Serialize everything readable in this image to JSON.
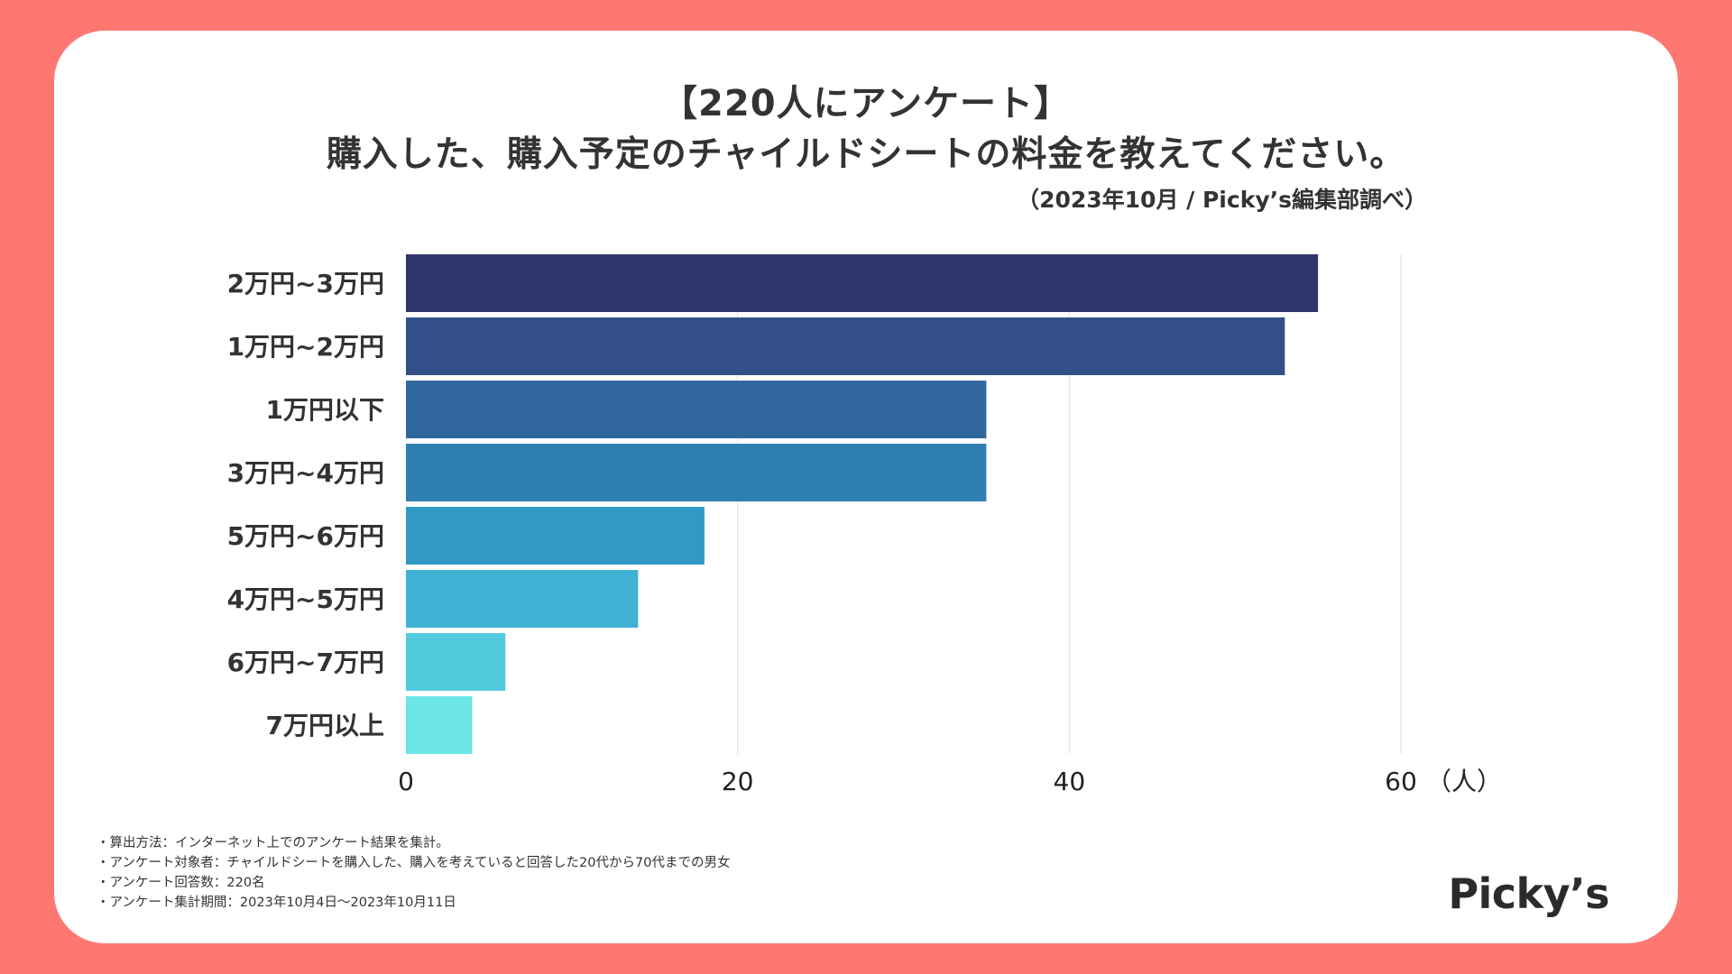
{
  "header": {
    "title_line1": "【220人にアンケート】",
    "title_line2": "購入した、購入予定のチャイルドシートの料金を教えてください。",
    "source": "（2023年10月 / Picky’s編集部調べ）"
  },
  "chart_data": {
    "type": "bar",
    "orientation": "horizontal",
    "categories": [
      "2万円~3万円",
      "1万円~2万円",
      "1万円以下",
      "3万円~4万円",
      "5万円~6万円",
      "4万円~5万円",
      "6万円~7万円",
      "7万円以上"
    ],
    "values": [
      55,
      53,
      35,
      35,
      18,
      14,
      6,
      4
    ],
    "colors": [
      "#30356d",
      "#325087",
      "#30679d",
      "#2f7fb2",
      "#3299c5",
      "#3fb1d3",
      "#52cbdf",
      "#6ce5e8"
    ],
    "xticks": [
      0,
      20,
      40,
      60
    ],
    "xlim": [
      0,
      60
    ],
    "xunit": "（人）",
    "grid": true
  },
  "notes": [
    "・算出方法：インターネット上でのアンケート結果を集計。",
    "・アンケート対象者：チャイルドシートを購入した、購入を考えていると回答した20代から70代までの男女",
    "・アンケート回答数：220名",
    "・アンケート集計期間：2023年10月4日〜2023年10月11日"
  ],
  "logo": "Picky’s",
  "colors": {
    "background": "#ff7771",
    "card": "#ffffff",
    "grid": "#e0e0e0",
    "text": "#333333"
  }
}
